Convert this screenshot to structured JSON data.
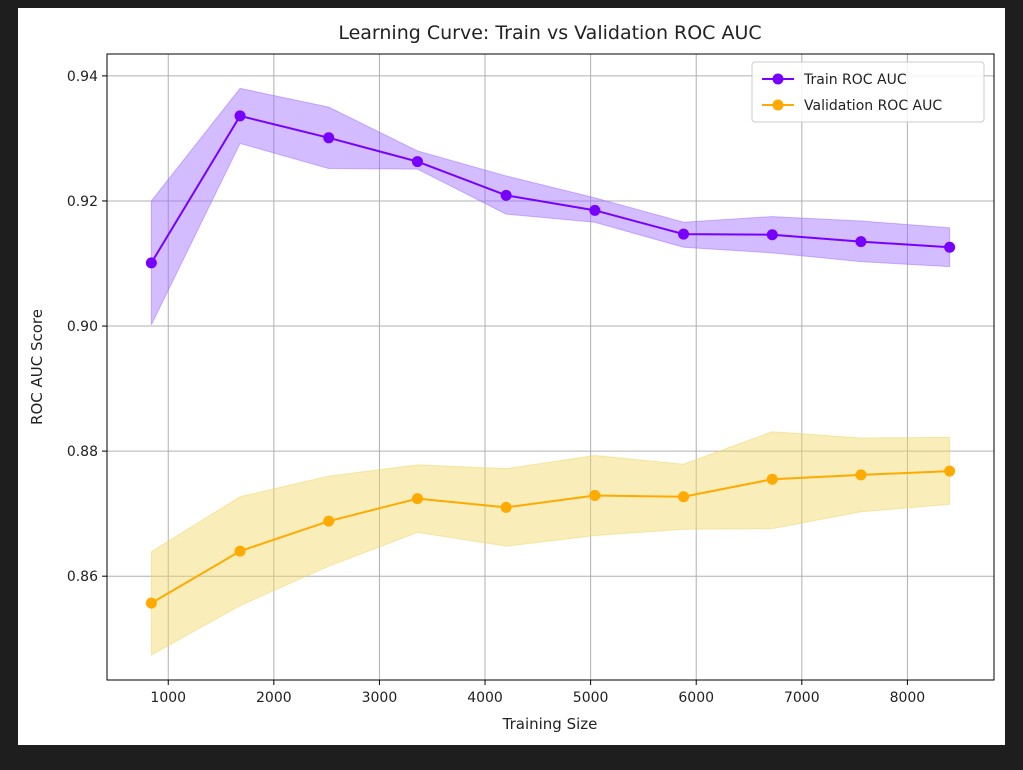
{
  "chart_data": {
    "type": "line",
    "title": "Learning Curve: Train vs Validation ROC AUC",
    "xlabel": "Training Size",
    "ylabel": "ROC AUC Score",
    "xlim": [
      420,
      8820
    ],
    "ylim": [
      0.8434,
      0.9435
    ],
    "xticks": [
      1000,
      2000,
      3000,
      4000,
      5000,
      6000,
      7000,
      8000
    ],
    "yticks": [
      0.86,
      0.88,
      0.9,
      0.92,
      0.94
    ],
    "ytick_labels": [
      "0.86",
      "0.88",
      "0.90",
      "0.92",
      "0.94"
    ],
    "grid": true,
    "legend": "top-right",
    "x": [
      840,
      1680,
      2520,
      3360,
      4200,
      5040,
      5880,
      6720,
      7560,
      8400
    ],
    "series": [
      {
        "name": "Train ROC AUC",
        "color": "#7700ff",
        "band_color": "#9d6bff",
        "marker": "circle",
        "values": [
          0.9101,
          0.9336,
          0.9301,
          0.9263,
          0.9209,
          0.9185,
          0.9147,
          0.9146,
          0.9135,
          0.9126
        ],
        "band_upper": [
          0.92,
          0.938,
          0.935,
          0.928,
          0.924,
          0.9205,
          0.9166,
          0.9175,
          0.9168,
          0.9157
        ],
        "band_lower": [
          0.9002,
          0.9292,
          0.9252,
          0.9251,
          0.9179,
          0.9166,
          0.9126,
          0.9117,
          0.9103,
          0.9095
        ]
      },
      {
        "name": "Validation ROC AUC",
        "color": "#ffaa00",
        "band_color": "#f2d666",
        "marker": "circle",
        "values": [
          0.8557,
          0.864,
          0.8688,
          0.8724,
          0.871,
          0.8729,
          0.8727,
          0.8755,
          0.8762,
          0.8768
        ],
        "band_upper": [
          0.8639,
          0.8727,
          0.876,
          0.8778,
          0.8772,
          0.8793,
          0.8779,
          0.8831,
          0.8821,
          0.8822
        ],
        "band_lower": [
          0.8474,
          0.8553,
          0.8616,
          0.867,
          0.8648,
          0.8665,
          0.8675,
          0.8676,
          0.8703,
          0.8715
        ]
      }
    ]
  }
}
